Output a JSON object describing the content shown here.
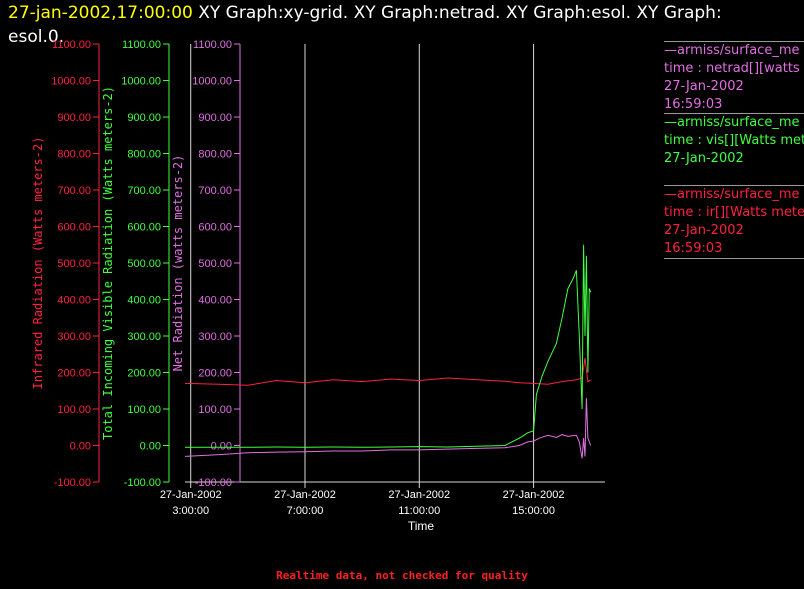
{
  "header": {
    "timestamp": "27-jan-2002,17:00:00",
    "title_rest": "  XY Graph:xy-grid.  XY Graph:netrad.  XY Graph:esol.  XY Graph: esol.0."
  },
  "footer": {
    "note": "Realtime data, not checked for quality"
  },
  "legend": [
    {
      "lines": [
        "—armiss/surface_me",
        "time : netrad[][watts me",
        "27-Jan-2002",
        "16:59:03"
      ],
      "color": "#e070e0"
    },
    {
      "lines": [
        "—armiss/surface_me",
        "time : vis[][Watts meter",
        "27-Jan-2002"
      ],
      "color": "#40ff40"
    },
    {
      "lines": [
        "—armiss/surface_me",
        "time : ir[][Watts meters",
        "27-Jan-2002",
        "16:59:03"
      ],
      "color": "#ff2040"
    }
  ],
  "chart_data": {
    "type": "line",
    "xlabel": "Time",
    "x_ticks": [
      {
        "date": "27-Jan-2002",
        "time": "3:00:00",
        "hour": 3
      },
      {
        "date": "27-Jan-2002",
        "time": "7:00:00",
        "hour": 7
      },
      {
        "date": "27-Jan-2002",
        "time": "11:00:00",
        "hour": 11
      },
      {
        "date": "27-Jan-2002",
        "time": "15:00:00",
        "hour": 15
      }
    ],
    "xlim_hours": [
      2.8,
      17.5
    ],
    "ylim": [
      -100,
      1100
    ],
    "y_ticks": [
      "-100.00",
      "0.00",
      "100.00",
      "200.00",
      "300.00",
      "400.00",
      "500.00",
      "600.00",
      "700.00",
      "800.00",
      "900.00",
      "1000.00",
      "1100.00"
    ],
    "axes": [
      {
        "label": "Infrared Radiation (Watts meters-2)",
        "color": "#ff2040"
      },
      {
        "label": "Total Incoming Visible Radiation (Watts meters-2)",
        "color": "#40ff40"
      },
      {
        "label": "Net Radiation (watts meters-2)",
        "color": "#e070e0"
      }
    ],
    "series": [
      {
        "name": "ir",
        "color": "#ff2040",
        "x": [
          2.8,
          4,
          5,
          6,
          7,
          8,
          9,
          10,
          11,
          12,
          13,
          14,
          14.5,
          15,
          15.5,
          16,
          16.5,
          16.7,
          16.8,
          16.9,
          17
        ],
        "y": [
          170,
          168,
          165,
          178,
          172,
          180,
          175,
          182,
          178,
          185,
          180,
          176,
          172,
          170,
          168,
          175,
          180,
          185,
          240,
          175,
          180
        ]
      },
      {
        "name": "vis",
        "color": "#40ff40",
        "x": [
          2.8,
          4,
          5,
          6,
          7,
          8,
          9,
          10,
          11,
          12,
          13,
          14,
          14.5,
          14.8,
          15,
          15.1,
          15.3,
          15.5,
          15.8,
          16,
          16.2,
          16.4,
          16.5,
          16.6,
          16.7,
          16.75,
          16.8,
          16.85,
          16.9,
          16.95,
          17
        ],
        "y": [
          -5,
          -5,
          -5,
          -4,
          -5,
          -4,
          -5,
          -4,
          -3,
          -4,
          -2,
          0,
          20,
          35,
          40,
          140,
          190,
          230,
          280,
          350,
          430,
          460,
          480,
          300,
          100,
          550,
          300,
          520,
          200,
          430,
          420
        ]
      },
      {
        "name": "netrad",
        "color": "#e070e0",
        "x": [
          2.8,
          4,
          5,
          6,
          7,
          8,
          9,
          10,
          11,
          12,
          13,
          14,
          14.5,
          14.8,
          15,
          15.2,
          15.5,
          15.8,
          16,
          16.2,
          16.5,
          16.6,
          16.7,
          16.75,
          16.8,
          16.85,
          16.9,
          17
        ],
        "y": [
          -30,
          -25,
          -20,
          -18,
          -17,
          -15,
          -15,
          -12,
          -12,
          -10,
          -8,
          -6,
          0,
          10,
          12,
          20,
          28,
          22,
          30,
          25,
          28,
          10,
          -35,
          20,
          -30,
          130,
          20,
          0
        ]
      }
    ]
  }
}
